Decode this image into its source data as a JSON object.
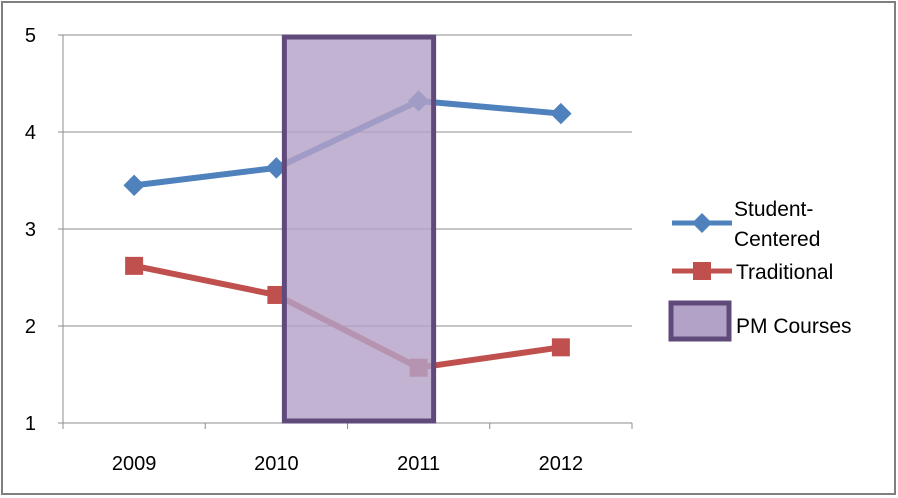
{
  "chart_data": {
    "type": "line",
    "categories": [
      "2009",
      "2010",
      "2011",
      "2012"
    ],
    "ylim": [
      1,
      5
    ],
    "yticks": [
      1,
      2,
      3,
      4,
      5
    ],
    "grid": true,
    "legend_position": "right",
    "series": [
      {
        "name": "Student-Centered",
        "name_lines": [
          "Student-",
          "Centered"
        ],
        "values": [
          3.45,
          3.63,
          4.32,
          4.19
        ],
        "color": "#4F81BD",
        "marker": "diamond"
      },
      {
        "name": "Traditional",
        "values": [
          2.62,
          2.32,
          1.57,
          1.78
        ],
        "color": "#C0504D",
        "marker": "square"
      }
    ],
    "highlight": {
      "name": "PM Courses",
      "x_range": [
        "2010",
        "2011"
      ],
      "y_range": [
        1,
        5
      ],
      "fill": "#B3A2C7",
      "stroke": "#604A7B"
    },
    "border_color": "#7F7F7F",
    "grid_color": "#8C8C8C"
  }
}
